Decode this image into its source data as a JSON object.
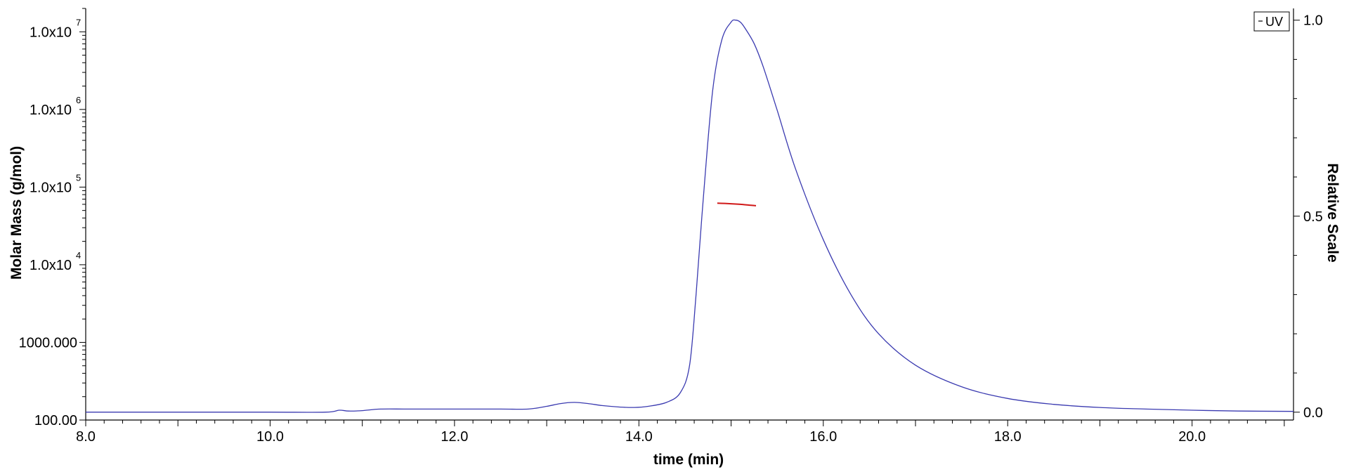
{
  "chart_data": {
    "type": "line",
    "xlabel": "time (min)",
    "ylabel_left": "Molar Mass (g/mol)",
    "ylabel_right": "Relative Scale",
    "xlim": [
      8.0,
      21.1
    ],
    "ylim_left": [
      100,
      20000000
    ],
    "ylim_right": [
      -0.02,
      1.03
    ],
    "left_scale": "log",
    "x_ticks": [
      {
        "value": 8.0,
        "label": "8.0"
      },
      {
        "value": 10.0,
        "label": "10.0"
      },
      {
        "value": 12.0,
        "label": "12.0"
      },
      {
        "value": 14.0,
        "label": "14.0"
      },
      {
        "value": 16.0,
        "label": "16.0"
      },
      {
        "value": 18.0,
        "label": "18.0"
      },
      {
        "value": 20.0,
        "label": "20.0"
      }
    ],
    "y_left_ticks": [
      {
        "value": 100,
        "label": "100.00",
        "exp": ""
      },
      {
        "value": 1000,
        "label": "1000.000",
        "exp": ""
      },
      {
        "value": 10000,
        "label": "1.0x10",
        "exp": "4"
      },
      {
        "value": 100000,
        "label": "1.0x10",
        "exp": "5"
      },
      {
        "value": 1000000,
        "label": "1.0x10",
        "exp": "6"
      },
      {
        "value": 10000000,
        "label": "1.0x10",
        "exp": "7"
      }
    ],
    "y_right_ticks": [
      {
        "value": 0.0,
        "label": "0.0"
      },
      {
        "value": 0.5,
        "label": "0.5"
      },
      {
        "value": 1.0,
        "label": "1.0"
      }
    ],
    "legend": {
      "entries": [
        {
          "name": "UV",
          "color": "#3a3ab0"
        }
      ],
      "position": "top-right"
    },
    "series": [
      {
        "name": "UV",
        "axis": "right",
        "color": "#3a3ab0",
        "x": [
          8.0,
          9.0,
          10.0,
          10.6,
          10.75,
          10.85,
          11.0,
          11.2,
          11.5,
          12.0,
          12.5,
          12.8,
          13.0,
          13.15,
          13.3,
          13.45,
          13.6,
          13.8,
          13.95,
          14.1,
          14.3,
          14.45,
          14.55,
          14.62,
          14.7,
          14.8,
          14.9,
          15.0,
          15.05,
          15.1,
          15.15,
          15.25,
          15.35,
          15.5,
          15.7,
          16.0,
          16.3,
          16.6,
          17.0,
          17.5,
          18.0,
          18.5,
          19.0,
          19.5,
          20.0,
          20.5,
          21.1
        ],
        "y": [
          0.0,
          0.0,
          0.0,
          0.0,
          0.005,
          0.003,
          0.004,
          0.008,
          0.008,
          0.008,
          0.008,
          0.008,
          0.015,
          0.022,
          0.025,
          0.022,
          0.017,
          0.013,
          0.012,
          0.015,
          0.025,
          0.05,
          0.12,
          0.3,
          0.55,
          0.82,
          0.95,
          0.995,
          1.0,
          0.995,
          0.98,
          0.94,
          0.88,
          0.77,
          0.62,
          0.44,
          0.3,
          0.2,
          0.12,
          0.065,
          0.035,
          0.02,
          0.012,
          0.008,
          0.005,
          0.003,
          0.002
        ]
      },
      {
        "name": "Molar Mass",
        "axis": "left",
        "color": "#d01818",
        "x": [
          14.85,
          15.0,
          15.1,
          15.2,
          15.27
        ],
        "y": [
          62000,
          61000,
          60000,
          58500,
          57500
        ]
      }
    ]
  }
}
